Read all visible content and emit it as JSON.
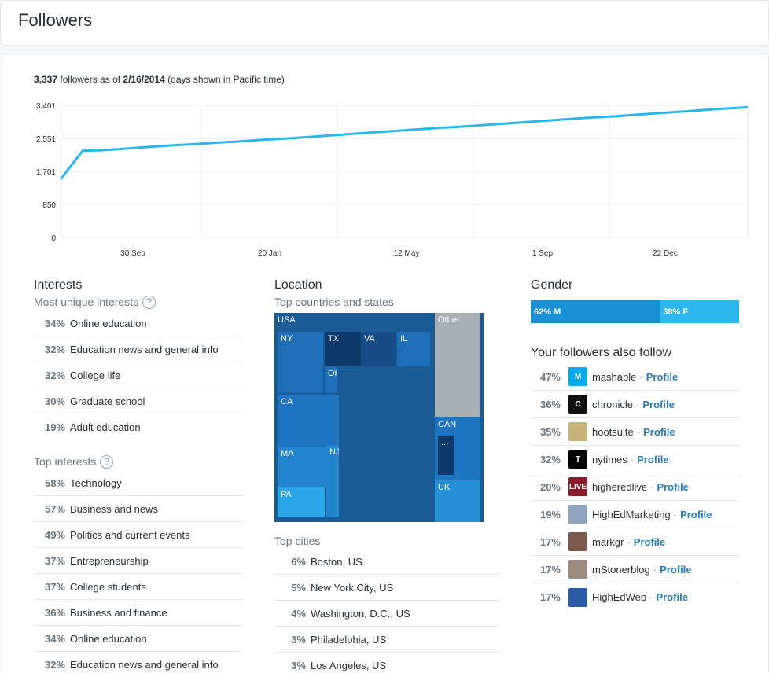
{
  "page_title": "Followers",
  "summary": {
    "count": "3,337",
    "mid_text": "followers as of",
    "date": "2/16/2014",
    "note": "(days shown in Pacific time)"
  },
  "chart_data": {
    "type": "line",
    "title": "",
    "xlabel": "",
    "ylabel": "",
    "y_ticks": [
      "3,401",
      "2,551",
      "1,701",
      "850",
      "0"
    ],
    "ylim": [
      0,
      3401
    ],
    "x_ticks": [
      "30 Sep",
      "20 Jan",
      "12 May",
      "1 Sep",
      "22 Dec"
    ],
    "grid": true,
    "color": "#29b6ef",
    "series": [
      {
        "values": [
          1500,
          2230,
          2250,
          2290,
          2330,
          2370,
          2400,
          2440,
          2470,
          2510,
          2540,
          2580,
          2620,
          2660,
          2700,
          2740,
          2780,
          2820,
          2850,
          2890,
          2930,
          2970,
          3010,
          3050,
          3090,
          3120,
          3160,
          3200,
          3240,
          3280,
          3320,
          3350
        ]
      }
    ]
  },
  "interests": {
    "title": "Interests",
    "unique_title": "Most unique interests",
    "help_glyph": "?",
    "unique": [
      {
        "pct": "34%",
        "label": "Online education"
      },
      {
        "pct": "32%",
        "label": "Education news and general info"
      },
      {
        "pct": "32%",
        "label": "College life"
      },
      {
        "pct": "30%",
        "label": "Graduate school"
      },
      {
        "pct": "19%",
        "label": "Adult education"
      }
    ],
    "top_title": "Top interests",
    "top": [
      {
        "pct": "58%",
        "label": "Technology"
      },
      {
        "pct": "57%",
        "label": "Business and news"
      },
      {
        "pct": "49%",
        "label": "Politics and current events"
      },
      {
        "pct": "37%",
        "label": "Entrepreneurship"
      },
      {
        "pct": "37%",
        "label": "College students"
      },
      {
        "pct": "36%",
        "label": "Business and finance"
      },
      {
        "pct": "34%",
        "label": "Online education"
      },
      {
        "pct": "32%",
        "label": "Education news and general info"
      }
    ]
  },
  "location": {
    "title": "Location",
    "countries_title": "Top countries and states",
    "treemap": {
      "usa": "USA",
      "ny": "NY",
      "tx": "TX",
      "va": "VA",
      "il": "IL",
      "oh": "OH",
      "ca": "CA",
      "ma": "MA",
      "nj": "NJ",
      "pa": "PA",
      "other": "Other",
      "can": "CAN",
      "more": "...",
      "uk": "UK"
    },
    "cities_title": "Top cities",
    "cities": [
      {
        "pct": "6%",
        "label": "Boston, US"
      },
      {
        "pct": "5%",
        "label": "New York City, US"
      },
      {
        "pct": "4%",
        "label": "Washington, D.C., US"
      },
      {
        "pct": "3%",
        "label": "Philadelphia, US"
      },
      {
        "pct": "3%",
        "label": "Los Angeles, US"
      }
    ]
  },
  "gender": {
    "title": "Gender",
    "male": "62% M",
    "female": "38% F",
    "male_value": 62,
    "female_value": 38
  },
  "also_follow": {
    "title": "Your followers also follow",
    "profile_label": "Profile",
    "separator": "·",
    "accounts": [
      {
        "pct": "47%",
        "name": "mashable",
        "avatar_glyph": "M",
        "avatar_color": "#00aced"
      },
      {
        "pct": "36%",
        "name": "chronicle",
        "avatar_glyph": "C",
        "avatar_color": "#111111"
      },
      {
        "pct": "35%",
        "name": "hootsuite",
        "avatar_glyph": "",
        "avatar_color": "#c8b47a"
      },
      {
        "pct": "32%",
        "name": "nytimes",
        "avatar_glyph": "T",
        "avatar_color": "#000000"
      },
      {
        "pct": "20%",
        "name": "higheredlive",
        "avatar_glyph": "LIVE",
        "avatar_color": "#8a1c2b"
      },
      {
        "pct": "19%",
        "name": "HighEdMarketing",
        "avatar_glyph": "",
        "avatar_color": "#8fa3bf"
      },
      {
        "pct": "17%",
        "name": "markgr",
        "avatar_glyph": "",
        "avatar_color": "#7a5a4a"
      },
      {
        "pct": "17%",
        "name": "mStonerblog",
        "avatar_glyph": "",
        "avatar_color": "#9a8a80"
      },
      {
        "pct": "17%",
        "name": "HighEdWeb",
        "avatar_glyph": "",
        "avatar_color": "#2a5ca8"
      }
    ]
  }
}
